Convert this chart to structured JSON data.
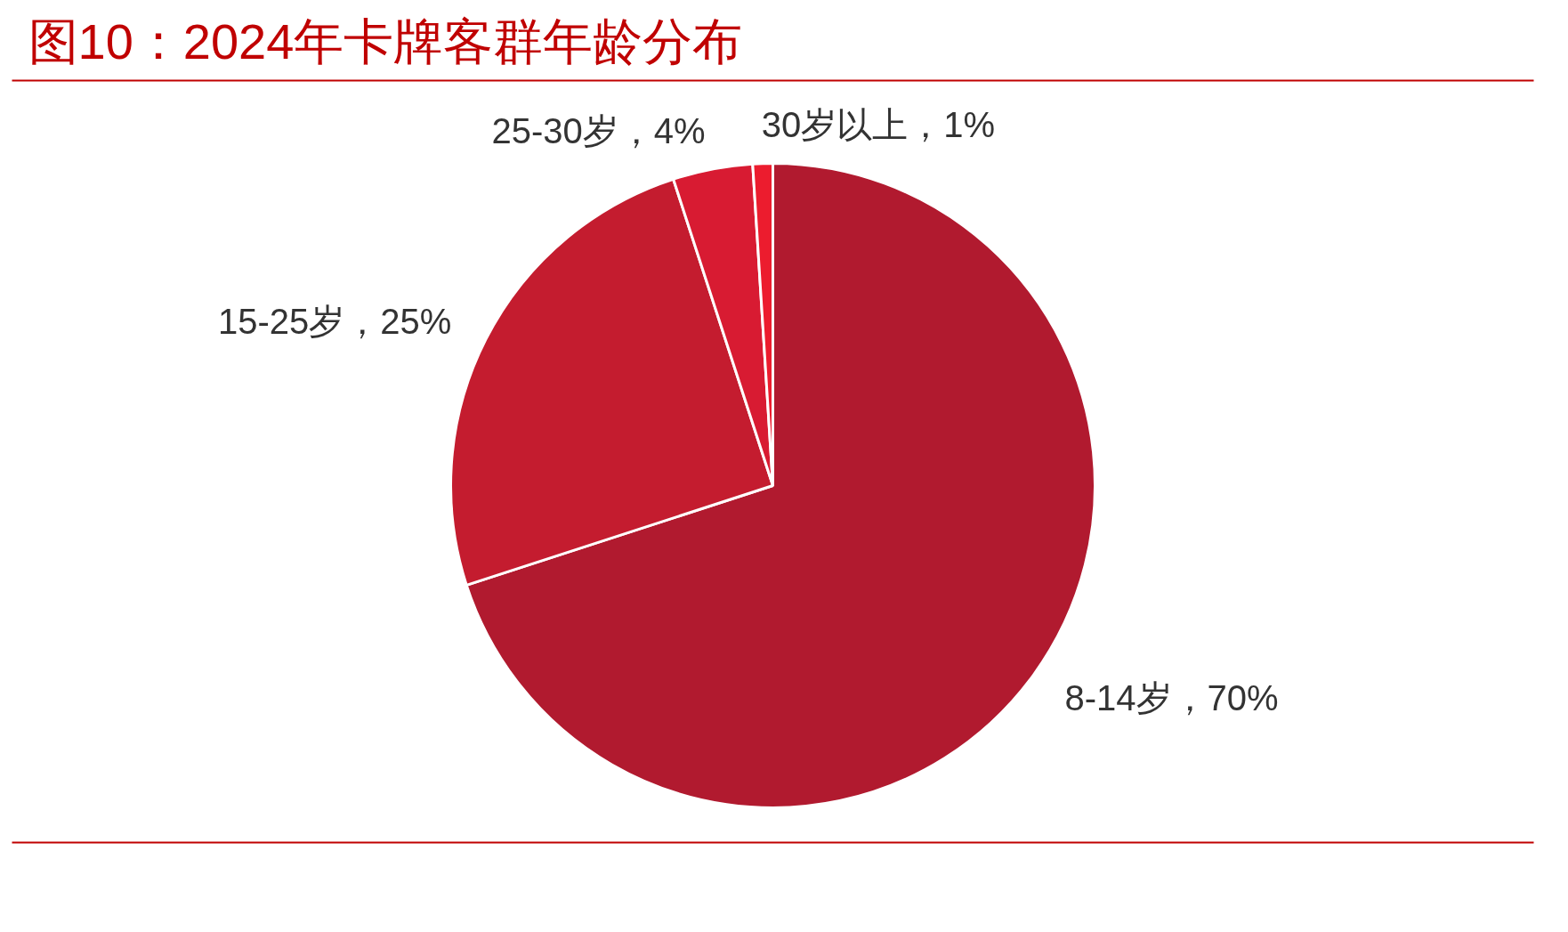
{
  "chart_data": {
    "type": "pie",
    "title": "图10：2024年卡牌客群年龄分布",
    "categories": [
      "8-14岁",
      "15-25岁",
      "25-30岁",
      "30岁以上"
    ],
    "values": [
      70,
      25,
      4,
      1
    ],
    "colors": [
      "#b11a2f",
      "#c41c2f",
      "#d81b32",
      "#ec1c2e"
    ],
    "value_labels": [
      "70%",
      "25%",
      "4%",
      "1%"
    ]
  }
}
